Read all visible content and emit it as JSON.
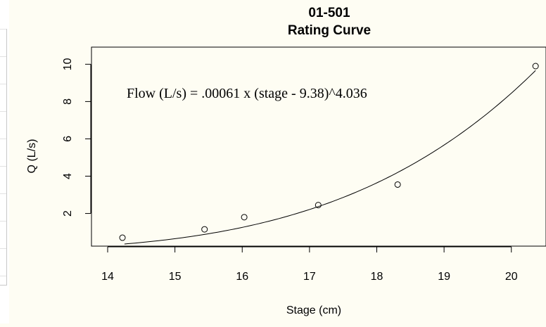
{
  "chart_data": {
    "type": "scatter",
    "title": "01-501",
    "subtitle": "Rating Curve",
    "xlabel": "Stage (cm)",
    "ylabel": "Q (L/s)",
    "xlim": [
      14,
      20.4
    ],
    "ylim": [
      0.4,
      9.9
    ],
    "x_ticks": [
      14,
      15,
      16,
      17,
      18,
      19,
      20
    ],
    "y_ticks": [
      2,
      4,
      6,
      8,
      10
    ],
    "grid": false,
    "points": [
      {
        "x": 14.22,
        "y": 0.7
      },
      {
        "x": 15.44,
        "y": 1.15
      },
      {
        "x": 16.03,
        "y": 1.8
      },
      {
        "x": 17.13,
        "y": 2.45
      },
      {
        "x": 18.31,
        "y": 3.55
      },
      {
        "x": 20.36,
        "y": 9.9
      }
    ],
    "fit": {
      "equation_label": "Flow (L/s) = .00061 x (stage - 9.38)^4.036",
      "a": 0.00061,
      "h0": 9.38,
      "b": 4.036,
      "x_range": [
        14.25,
        20.36
      ]
    },
    "colors": {
      "points": "#000000",
      "curve": "#000000",
      "axes": "#000000"
    }
  }
}
